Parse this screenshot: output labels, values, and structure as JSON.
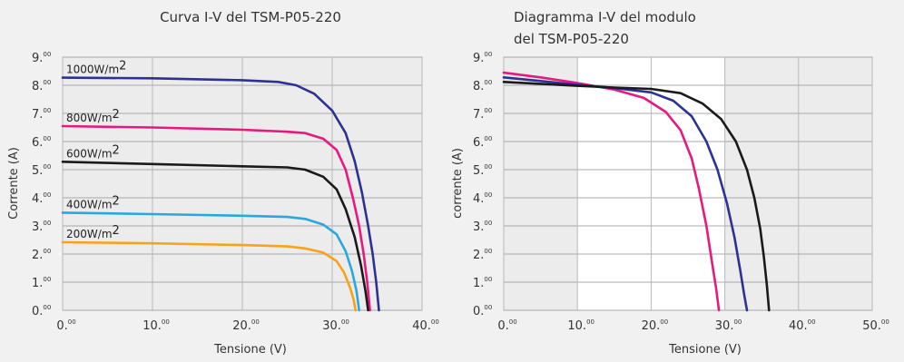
{
  "chart_data": [
    {
      "type": "line",
      "title": "Curva I-V del TSM-P05-220",
      "xlabel": "Tensione (V)",
      "ylabel": "Corrente (A)",
      "xlim": [
        0,
        40
      ],
      "ylim": [
        0,
        9
      ],
      "x_ticks": [
        {
          "main": "0.",
          "sup": "00"
        },
        {
          "main": "10.",
          "sup": "00"
        },
        {
          "main": "20.",
          "sup": "00"
        },
        {
          "main": "30.",
          "sup": "00"
        },
        {
          "main": "40.",
          "sup": "00"
        }
      ],
      "y_ticks": [
        {
          "main": "0.",
          "sup": "00"
        },
        {
          "main": "1.",
          "sup": "00"
        },
        {
          "main": "2.",
          "sup": "00"
        },
        {
          "main": "3.",
          "sup": "00"
        },
        {
          "main": "4.",
          "sup": "00"
        },
        {
          "main": "5.",
          "sup": "00"
        },
        {
          "main": "6.",
          "sup": "00"
        },
        {
          "main": "7.",
          "sup": "00"
        },
        {
          "main": "8.",
          "sup": "00"
        },
        {
          "main": "9.",
          "sup": "00"
        }
      ],
      "grid": true,
      "series": [
        {
          "name": "1000W/m²",
          "label_main": "1000W/m",
          "label_sup": "2",
          "color": "#2e3192",
          "points": [
            [
              0,
              8.27
            ],
            [
              10,
              8.25
            ],
            [
              20,
              8.18
            ],
            [
              24,
              8.12
            ],
            [
              26,
              8.0
            ],
            [
              28,
              7.7
            ],
            [
              30,
              7.1
            ],
            [
              31.5,
              6.3
            ],
            [
              32.5,
              5.3
            ],
            [
              33.3,
              4.2
            ],
            [
              34,
              3.0
            ],
            [
              34.5,
              2.0
            ],
            [
              34.9,
              1.0
            ],
            [
              35.2,
              0
            ]
          ]
        },
        {
          "name": "800W/m²",
          "label_main": "800W/m",
          "label_sup": "2",
          "color": "#e6197e",
          "points": [
            [
              0,
              6.55
            ],
            [
              10,
              6.5
            ],
            [
              20,
              6.42
            ],
            [
              25,
              6.35
            ],
            [
              27,
              6.3
            ],
            [
              29,
              6.1
            ],
            [
              30.5,
              5.7
            ],
            [
              31.5,
              5.0
            ],
            [
              32.3,
              4.0
            ],
            [
              33,
              3.0
            ],
            [
              33.5,
              2.0
            ],
            [
              33.9,
              1.0
            ],
            [
              34.2,
              0
            ]
          ]
        },
        {
          "name": "600W/m²",
          "label_main": "600W/m",
          "label_sup": "2",
          "color": "#1a1a1a",
          "points": [
            [
              0,
              5.28
            ],
            [
              10,
              5.2
            ],
            [
              20,
              5.12
            ],
            [
              25,
              5.08
            ],
            [
              27,
              5.0
            ],
            [
              29,
              4.75
            ],
            [
              30.5,
              4.3
            ],
            [
              31.5,
              3.6
            ],
            [
              32.5,
              2.6
            ],
            [
              33.2,
              1.6
            ],
            [
              33.7,
              0.7
            ],
            [
              34,
              0
            ]
          ]
        },
        {
          "name": "400W/m²",
          "label_main": "400W/m",
          "label_sup": "2",
          "color": "#29a8e0",
          "points": [
            [
              0,
              3.47
            ],
            [
              10,
              3.42
            ],
            [
              20,
              3.36
            ],
            [
              25,
              3.32
            ],
            [
              27,
              3.25
            ],
            [
              29,
              3.05
            ],
            [
              30.5,
              2.7
            ],
            [
              31.5,
              2.1
            ],
            [
              32.2,
              1.4
            ],
            [
              32.7,
              0.7
            ],
            [
              33,
              0
            ]
          ]
        },
        {
          "name": "200W/m²",
          "label_main": "200W/m",
          "label_sup": "2",
          "color": "#f7a21b",
          "points": [
            [
              0,
              2.42
            ],
            [
              10,
              2.38
            ],
            [
              20,
              2.32
            ],
            [
              25,
              2.27
            ],
            [
              27,
              2.2
            ],
            [
              29,
              2.05
            ],
            [
              30.5,
              1.75
            ],
            [
              31.3,
              1.35
            ],
            [
              32,
              0.8
            ],
            [
              32.4,
              0.35
            ],
            [
              32.6,
              0
            ]
          ]
        }
      ]
    },
    {
      "type": "line",
      "title_lines": [
        "Diagramma I-V del modulo",
        "del TSM-P05-220"
      ],
      "xlabel": "Tensione (V)",
      "ylabel": "corrente (A)",
      "xlim": [
        0,
        50
      ],
      "ylim": [
        0,
        9
      ],
      "x_ticks": [
        {
          "main": "0.",
          "sup": "00"
        },
        {
          "main": "10.",
          "sup": "00"
        },
        {
          "main": "20.",
          "sup": "00"
        },
        {
          "main": "30.",
          "sup": "00"
        },
        {
          "main": "40.",
          "sup": "00"
        },
        {
          "main": "50.",
          "sup": "00"
        }
      ],
      "y_ticks": [
        {
          "main": "0.",
          "sup": "00"
        },
        {
          "main": "1.",
          "sup": "00"
        },
        {
          "main": "2.",
          "sup": "00"
        },
        {
          "main": "3.",
          "sup": "00"
        },
        {
          "main": "4.",
          "sup": "00"
        },
        {
          "main": "5.",
          "sup": "00"
        },
        {
          "main": "6.",
          "sup": "00"
        },
        {
          "main": "7.",
          "sup": "00"
        },
        {
          "main": "8.",
          "sup": "00"
        },
        {
          "main": "9.",
          "sup": "00"
        }
      ],
      "grid": true,
      "series": [
        {
          "color": "#e6197e",
          "points": [
            [
              0,
              8.45
            ],
            [
              5,
              8.28
            ],
            [
              10,
              8.08
            ],
            [
              15,
              7.85
            ],
            [
              19,
              7.55
            ],
            [
              22,
              7.05
            ],
            [
              24,
              6.4
            ],
            [
              25.5,
              5.4
            ],
            [
              26.5,
              4.3
            ],
            [
              27.5,
              3.0
            ],
            [
              28.2,
              1.8
            ],
            [
              28.8,
              0.8
            ],
            [
              29.2,
              0
            ]
          ]
        },
        {
          "color": "#2e3192",
          "points": [
            [
              0,
              8.28
            ],
            [
              5,
              8.15
            ],
            [
              10,
              8.02
            ],
            [
              15,
              7.9
            ],
            [
              20,
              7.75
            ],
            [
              23,
              7.45
            ],
            [
              25.5,
              6.9
            ],
            [
              27.5,
              6.0
            ],
            [
              29,
              5.0
            ],
            [
              30.3,
              3.8
            ],
            [
              31.3,
              2.6
            ],
            [
              32.1,
              1.4
            ],
            [
              32.6,
              0.6
            ],
            [
              33,
              0
            ]
          ]
        },
        {
          "color": "#1a1a1a",
          "points": [
            [
              0,
              8.12
            ],
            [
              5,
              8.05
            ],
            [
              10,
              7.98
            ],
            [
              15,
              7.92
            ],
            [
              20,
              7.87
            ],
            [
              24,
              7.72
            ],
            [
              27,
              7.35
            ],
            [
              29.5,
              6.8
            ],
            [
              31.5,
              6.0
            ],
            [
              33,
              5.0
            ],
            [
              34,
              4.0
            ],
            [
              34.8,
              2.9
            ],
            [
              35.3,
              1.9
            ],
            [
              35.7,
              0.9
            ],
            [
              36,
              0
            ]
          ]
        }
      ]
    }
  ]
}
